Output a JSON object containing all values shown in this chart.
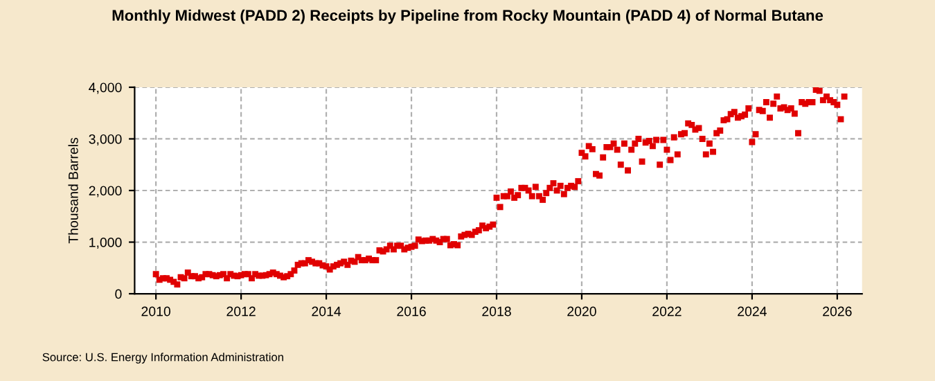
{
  "chart_data": {
    "type": "scatter",
    "title": "Monthly Midwest (PADD 2) Receipts by Pipeline from Rocky Mountain (PADD 4) of Normal Butane",
    "ylabel": "Thousand Barrels",
    "annotations": [
      "Source: U.S. Energy Information Administration"
    ],
    "series": [
      {
        "color": "#e00000",
        "x": [
          "2010-01",
          "2010-02",
          "2010-03",
          "2010-04",
          "2010-05",
          "2010-06",
          "2010-07",
          "2010-08",
          "2010-09",
          "2010-10",
          "2010-11",
          "2010-12",
          "2011-01",
          "2011-02",
          "2011-03",
          "2011-04",
          "2011-05",
          "2011-06",
          "2011-07",
          "2011-08",
          "2011-09",
          "2011-10",
          "2011-11",
          "2011-12",
          "2012-01",
          "2012-02",
          "2012-03",
          "2012-04",
          "2012-05",
          "2012-06",
          "2012-07",
          "2012-08",
          "2012-09",
          "2012-10",
          "2012-11",
          "2012-12",
          "2013-01",
          "2013-02",
          "2013-03",
          "2013-04",
          "2013-05",
          "2013-06",
          "2013-07",
          "2013-08",
          "2013-09",
          "2013-10",
          "2013-11",
          "2013-12",
          "2014-01",
          "2014-02",
          "2014-03",
          "2014-04",
          "2014-05",
          "2014-06",
          "2014-07",
          "2014-08",
          "2014-09",
          "2014-10",
          "2014-11",
          "2014-12",
          "2015-01",
          "2015-02",
          "2015-03",
          "2015-04",
          "2015-05",
          "2015-06",
          "2015-07",
          "2015-08",
          "2015-09",
          "2015-10",
          "2015-11",
          "2015-12",
          "2016-01",
          "2016-02",
          "2016-03",
          "2016-04",
          "2016-05",
          "2016-06",
          "2016-07",
          "2016-08",
          "2016-09",
          "2016-10",
          "2016-11",
          "2016-12",
          "2017-01",
          "2017-02",
          "2017-03",
          "2017-04",
          "2017-05",
          "2017-06",
          "2017-07",
          "2017-08",
          "2017-09",
          "2017-10",
          "2017-11",
          "2017-12",
          "2018-01",
          "2018-02",
          "2018-03",
          "2018-04",
          "2018-05",
          "2018-06",
          "2018-07",
          "2018-08",
          "2018-09",
          "2018-10",
          "2018-11",
          "2018-12",
          "2019-01",
          "2019-02",
          "2019-03",
          "2019-04",
          "2019-05",
          "2019-06",
          "2019-07",
          "2019-08",
          "2019-09",
          "2019-10",
          "2019-11",
          "2019-12",
          "2020-01",
          "2020-02",
          "2020-03",
          "2020-04",
          "2020-05",
          "2020-06",
          "2020-07",
          "2020-08",
          "2020-09",
          "2020-10",
          "2020-11",
          "2020-12",
          "2021-01",
          "2021-02",
          "2021-03",
          "2021-04",
          "2021-05",
          "2021-06",
          "2021-07",
          "2021-08",
          "2021-09",
          "2021-10",
          "2021-11",
          "2021-12",
          "2022-01",
          "2022-02",
          "2022-03",
          "2022-04",
          "2022-05",
          "2022-06",
          "2022-07",
          "2022-08",
          "2022-09",
          "2022-10",
          "2022-11",
          "2022-12",
          "2023-01",
          "2023-02",
          "2023-03",
          "2023-04",
          "2023-05",
          "2023-06",
          "2023-07",
          "2023-08",
          "2023-09",
          "2023-10",
          "2023-11",
          "2023-12",
          "2024-01",
          "2024-02",
          "2024-03",
          "2024-04",
          "2024-05",
          "2024-06",
          "2024-07",
          "2024-08",
          "2024-09",
          "2024-10",
          "2024-11",
          "2024-12",
          "2025-01",
          "2025-02",
          "2025-03",
          "2025-04",
          "2025-05",
          "2025-06",
          "2025-07",
          "2025-08",
          "2025-09",
          "2025-10",
          "2025-11",
          "2025-12",
          "2026-01",
          "2026-02",
          "2026-03"
        ],
        "values": [
          380,
          270,
          300,
          300,
          270,
          230,
          180,
          320,
          300,
          410,
          340,
          340,
          300,
          320,
          380,
          380,
          360,
          340,
          360,
          380,
          300,
          380,
          350,
          340,
          360,
          380,
          380,
          300,
          380,
          350,
          350,
          360,
          380,
          410,
          380,
          350,
          320,
          340,
          380,
          450,
          560,
          590,
          590,
          650,
          620,
          590,
          590,
          550,
          530,
          470,
          530,
          560,
          590,
          620,
          560,
          640,
          620,
          710,
          650,
          650,
          680,
          650,
          650,
          840,
          820,
          860,
          930,
          860,
          930,
          930,
          860,
          890,
          910,
          930,
          1050,
          1020,
          1030,
          1030,
          1060,
          1030,
          1000,
          1060,
          1060,
          940,
          960,
          940,
          1110,
          1140,
          1160,
          1140,
          1200,
          1230,
          1320,
          1270,
          1300,
          1340,
          1860,
          1680,
          1890,
          1890,
          1980,
          1860,
          1910,
          2050,
          2050,
          2000,
          1890,
          2070,
          1890,
          1820,
          1950,
          2050,
          2140,
          2000,
          2090,
          1930,
          2050,
          2090,
          2070,
          2180,
          2730,
          2660,
          2860,
          2800,
          2320,
          2290,
          2640,
          2840,
          2840,
          2910,
          2790,
          2500,
          2910,
          2390,
          2790,
          2910,
          3000,
          2560,
          2930,
          2960,
          2860,
          2980,
          2500,
          2980,
          2790,
          2590,
          3030,
          2700,
          3090,
          3110,
          3300,
          3270,
          3180,
          3210,
          3000,
          2700,
          2910,
          2750,
          3110,
          3160,
          3360,
          3380,
          3480,
          3520,
          3410,
          3440,
          3470,
          3590,
          2940,
          3090,
          3560,
          3540,
          3710,
          3410,
          3680,
          3820,
          3590,
          3610,
          3560,
          3590,
          3490,
          3110,
          3710,
          3680,
          3710,
          3710,
          3950,
          3930,
          3750,
          3820,
          3750,
          3710,
          3660,
          3380,
          3820
        ]
      }
    ],
    "xlim": [
      "2009-07",
      "2026-08"
    ],
    "xticks": [
      "2010",
      "2012",
      "2014",
      "2016",
      "2018",
      "2020",
      "2022",
      "2024",
      "2026"
    ],
    "ylim": [
      0,
      4000
    ],
    "yticks": [
      {
        "value": 0,
        "label": "0"
      },
      {
        "value": 1000,
        "label": "1,000"
      },
      {
        "value": 2000,
        "label": "2,000"
      },
      {
        "value": 3000,
        "label": "3,000"
      },
      {
        "value": 4000,
        "label": "4,000"
      }
    ],
    "grid": true,
    "marker": "square"
  }
}
